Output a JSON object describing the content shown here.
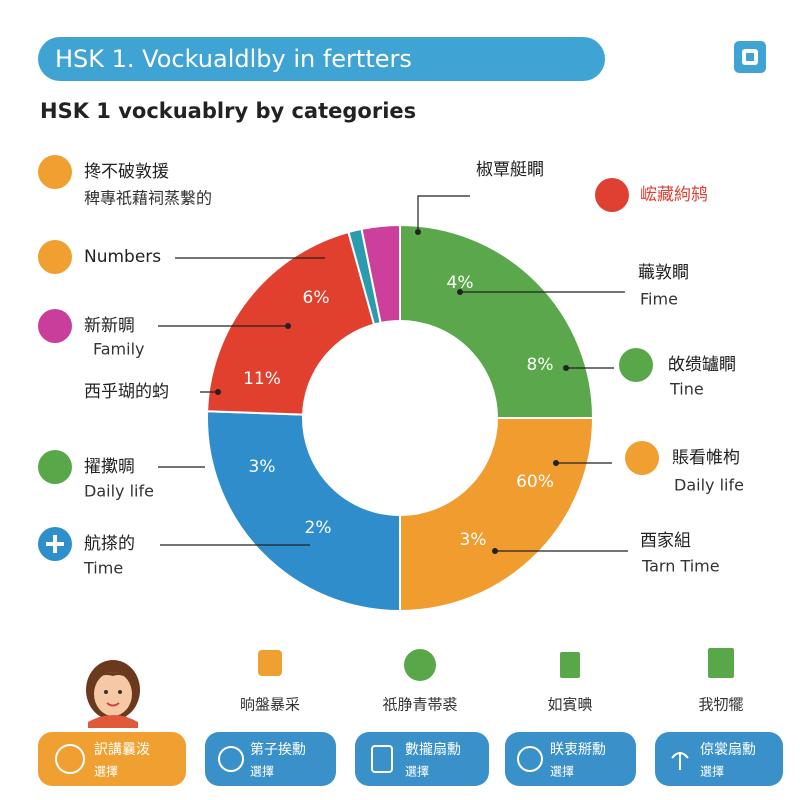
{
  "header": {
    "title": "HSK 1. Vockualdlby in fertters",
    "subtitle": "HSK 1 vockuablry by categories"
  },
  "donut": {
    "labels": [
      "4%",
      "8%",
      "60%",
      "3%",
      "2%",
      "3%",
      "11%",
      "6%"
    ],
    "top_label": "椒覃艇瞷"
  },
  "left_items": [
    {
      "title": "搀不破敦援",
      "subtitle": "稗專祇藉祠蒸繫的"
    },
    {
      "title": "Numbers"
    },
    {
      "title": "新新晭",
      "subtitle": "Family"
    },
    {
      "title": "西乎瑚的蚐"
    },
    {
      "title": "擢擹晭",
      "subtitle": "Daily life"
    },
    {
      "title": "航搽的",
      "subtitle": "Time"
    }
  ],
  "right_items": [
    {
      "title": "峵藏絇鸫"
    },
    {
      "title": "蘵敦瞷",
      "subtitle": "Fime"
    },
    {
      "title": "敀缋罏瞷",
      "subtitle": "Tine"
    },
    {
      "title": "賬看帷枸",
      "subtitle": "Daily life"
    },
    {
      "title": "酉家組",
      "subtitle": "Tarn Time"
    }
  ],
  "icons_row": [
    "晌盤暴采",
    "祇㬹青帯裘",
    "如賓晪",
    "我牣犤"
  ],
  "buttons": [
    {
      "line1": "訳講曩泼",
      "line2": "選擇"
    },
    {
      "line1": "第子挨勳",
      "line2": "選擇"
    },
    {
      "line1": "數攏扇勳",
      "line2": "選擇"
    },
    {
      "line1": "眹衷掰勳",
      "line2": "選擇"
    },
    {
      "line1": "倞裳扇勳",
      "line2": "選擇"
    }
  ]
}
